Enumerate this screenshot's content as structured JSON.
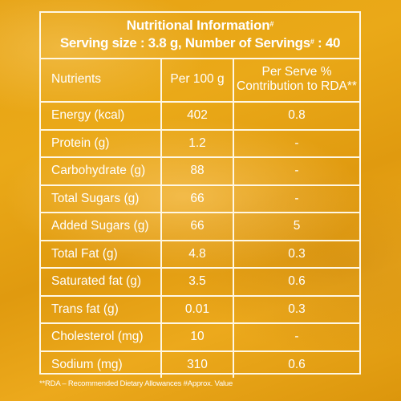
{
  "header": {
    "title": "Nutritional Information",
    "title_mark": "#",
    "serving_prefix": "Serving size : 3.8 g, Number of Servings",
    "serving_mark": "#",
    "serving_suffix": ": 40"
  },
  "table": {
    "columns": [
      "Nutrients",
      "Per 100 g",
      "Per Serve %",
      "Contribution to RDA**"
    ],
    "rows": [
      {
        "nutrient": "Energy (kcal)",
        "per100": "402",
        "rda": "0.8"
      },
      {
        "nutrient": "Protein (g)",
        "per100": "1.2",
        "rda": "-"
      },
      {
        "nutrient": "Carbohydrate (g)",
        "per100": "88",
        "rda": "-"
      },
      {
        "nutrient": "Total Sugars (g)",
        "per100": "66",
        "rda": "-"
      },
      {
        "nutrient": "Added Sugars (g)",
        "per100": "66",
        "rda": "5"
      },
      {
        "nutrient": "Total Fat (g)",
        "per100": "4.8",
        "rda": "0.3"
      },
      {
        "nutrient": "Saturated fat (g)",
        "per100": "3.5",
        "rda": "0.6"
      },
      {
        "nutrient": "Trans fat (g)",
        "per100": "0.01",
        "rda": "0.3"
      },
      {
        "nutrient": "Cholesterol (mg)",
        "per100": "10",
        "rda": "-"
      },
      {
        "nutrient": "Sodium (mg)",
        "per100": "310",
        "rda": "0.6"
      }
    ]
  },
  "footnote": "**RDA – Recommended Dietary Allowances #Approx. Value",
  "colors": {
    "background": "#e6a213",
    "border": "#fff7e3",
    "text": "#ffffff"
  }
}
